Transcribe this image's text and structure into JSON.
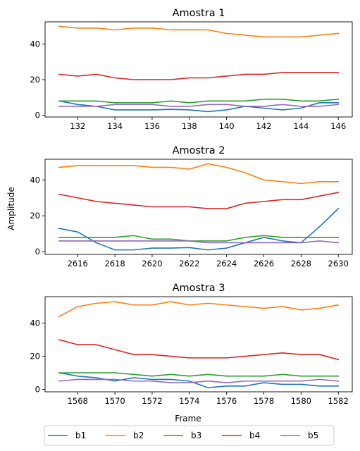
{
  "chart_data": {
    "type": "line",
    "ylabel": "Amplitude",
    "xlabel": "Frame",
    "colors": {
      "b1": "#1f77b4",
      "b2": "#ff7f0e",
      "b3": "#2ca02c",
      "b4": "#d62728",
      "b5": "#9467bd"
    },
    "legend": {
      "placement": "bottom-center",
      "entries": [
        "b1",
        "b2",
        "b3",
        "b4",
        "b5"
      ]
    },
    "panels": [
      {
        "title": "Amostra 1",
        "x": [
          131,
          132,
          133,
          134,
          135,
          136,
          137,
          138,
          139,
          140,
          141,
          142,
          143,
          144,
          145,
          146
        ],
        "xlim": [
          130.25,
          146.75
        ],
        "ylim": [
          -1,
          52.5
        ],
        "xticks": [
          132,
          134,
          136,
          138,
          140,
          142,
          144,
          146
        ],
        "yticks": [
          0,
          20,
          40
        ],
        "series": [
          {
            "name": "b1",
            "values": [
              8,
              6,
              5,
              3,
              3,
              3,
              3.3,
              3,
              2,
              3,
              5,
              4,
              3,
              4,
              7,
              7
            ]
          },
          {
            "name": "b2",
            "values": [
              50,
              49,
              49,
              48,
              49,
              49,
              48,
              48,
              48,
              46,
              45,
              44,
              44,
              44,
              45,
              46
            ]
          },
          {
            "name": "b3",
            "values": [
              8,
              8,
              8,
              7,
              7,
              7,
              8,
              7,
              8,
              8,
              8,
              9,
              9,
              8,
              8,
              9
            ]
          },
          {
            "name": "b4",
            "values": [
              23,
              22,
              23,
              21,
              20,
              20,
              20,
              21,
              21,
              22,
              23,
              23,
              24,
              24,
              24,
              24
            ]
          },
          {
            "name": "b5",
            "values": [
              5,
              5,
              5,
              6,
              6,
              6,
              5,
              5,
              6,
              6,
              5,
              5,
              6,
              5,
              5,
              6
            ]
          }
        ]
      },
      {
        "title": "Amostra 2",
        "x": [
          2615,
          2616,
          2617,
          2618,
          2619,
          2620,
          2621,
          2622,
          2623,
          2624,
          2625,
          2626,
          2627,
          2628,
          2629,
          2630
        ],
        "xlim": [
          2614.25,
          2630.75
        ],
        "ylim": [
          -1.5,
          51.5
        ],
        "xticks": [
          2616,
          2618,
          2620,
          2622,
          2624,
          2626,
          2628,
          2630
        ],
        "yticks": [
          0,
          20,
          40
        ],
        "series": [
          {
            "name": "b1",
            "values": [
              13,
              11,
              5,
              1,
              1,
              2,
              2,
              2.3,
              1,
              2,
              5,
              8,
              6,
              5,
              14,
              24
            ]
          },
          {
            "name": "b2",
            "values": [
              47,
              48,
              48,
              48,
              48,
              47,
              47,
              46,
              49,
              47,
              44,
              40,
              39,
              38,
              39,
              39
            ]
          },
          {
            "name": "b3",
            "values": [
              8,
              8,
              8,
              8,
              9,
              7,
              7,
              6,
              6,
              6,
              8,
              9,
              8,
              8,
              8,
              8
            ]
          },
          {
            "name": "b4",
            "values": [
              32,
              30,
              28,
              27,
              26,
              25,
              25,
              25,
              24,
              24,
              27,
              28,
              29,
              29,
              31,
              33
            ]
          },
          {
            "name": "b5",
            "values": [
              6,
              6,
              6,
              6,
              6,
              6,
              6,
              6,
              5,
              5,
              5,
              5,
              5,
              5,
              6,
              5
            ]
          }
        ]
      },
      {
        "title": "Amostra 3",
        "x": [
          1567,
          1568,
          1569,
          1570,
          1571,
          1572,
          1573,
          1574,
          1575,
          1576,
          1577,
          1578,
          1579,
          1580,
          1581,
          1582
        ],
        "xlim": [
          1566.25,
          1582.75
        ],
        "ylim": [
          -1.5,
          56
        ],
        "xticks": [
          1568,
          1570,
          1572,
          1574,
          1576,
          1578,
          1580,
          1582
        ],
        "yticks": [
          0,
          20,
          40
        ],
        "series": [
          {
            "name": "b1",
            "values": [
              10,
              8,
              7,
              5,
              7,
              6,
              6,
              5,
              1,
              2,
              2,
              4,
              3,
              3,
              2,
              2
            ]
          },
          {
            "name": "b2",
            "values": [
              44,
              50,
              52,
              53,
              51,
              51,
              53,
              51,
              52,
              51,
              50,
              49,
              50,
              48,
              49,
              51
            ]
          },
          {
            "name": "b3",
            "values": [
              10,
              10,
              10,
              10,
              9,
              8,
              9,
              8,
              9,
              8,
              8,
              8,
              9,
              8,
              8,
              8
            ]
          },
          {
            "name": "b4",
            "values": [
              30,
              27,
              27,
              24,
              21,
              21,
              20,
              19,
              19,
              19,
              20,
              21,
              22,
              21,
              21,
              18
            ]
          },
          {
            "name": "b5",
            "values": [
              5,
              6,
              6,
              6,
              5,
              5,
              4,
              4,
              5,
              4,
              5,
              5,
              5,
              5,
              6,
              5
            ]
          }
        ]
      }
    ]
  }
}
